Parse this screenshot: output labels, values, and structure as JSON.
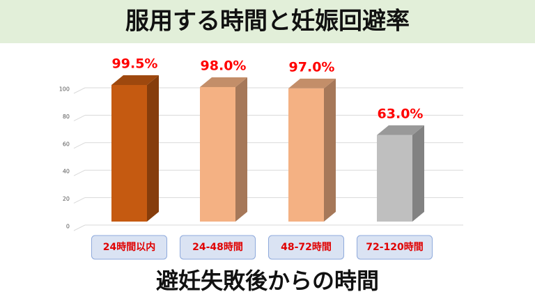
{
  "chart_data": {
    "type": "bar3d",
    "title": "服用する時間と妊娠回避率",
    "x_label": "避妊失敗後からの時間",
    "categories": [
      "24時間以内",
      "24-48時間",
      "48-72時間",
      "72-120時間"
    ],
    "values": [
      99.5,
      98.0,
      97.0,
      63.0
    ],
    "value_labels": [
      "99.5%",
      "98.0%",
      "97.0%",
      "63.0%"
    ],
    "colors": [
      "#c55a11",
      "#f4b183",
      "#f4b183",
      "#bfbfbf"
    ],
    "ylim": [
      0,
      100
    ],
    "yticks": [
      0,
      20,
      40,
      60,
      80,
      100
    ],
    "grid": true
  }
}
